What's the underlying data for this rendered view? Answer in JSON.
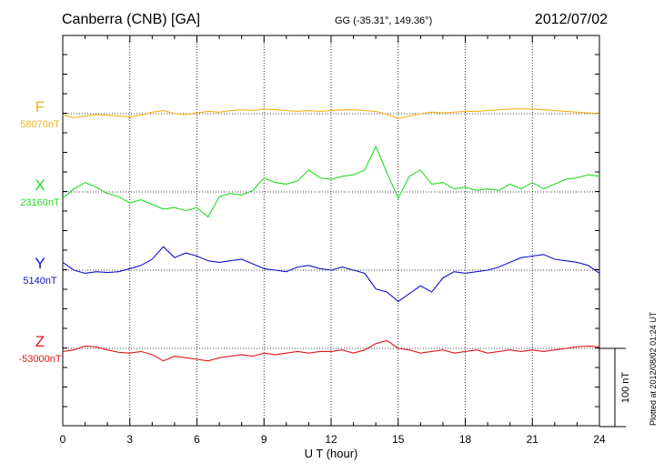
{
  "header": {
    "station": "Canberra (CNB)  [GA]",
    "coords": "GG (-35.31°, 149.36°)",
    "date": "2012/07/02"
  },
  "footer": {
    "plotted_at": "Plotted at 2012/08/02 01:24  UT"
  },
  "scale_bar": {
    "label": "100 nT",
    "value_nT": 100
  },
  "colors": {
    "F": "#f5b21a",
    "X": "#22dd22",
    "Y": "#1212cc",
    "Z": "#e01818",
    "grid": "#000000"
  },
  "chart_data": {
    "type": "line",
    "xlabel": "U T (hour)",
    "xlim": [
      0,
      24
    ],
    "x_ticks": [
      0,
      3,
      6,
      9,
      12,
      15,
      18,
      21,
      24
    ],
    "x_tick_labels": [
      "0",
      "3",
      "6",
      "9",
      "12",
      "15",
      "18",
      "21",
      "24"
    ],
    "grid": true,
    "y_unit": "nT",
    "nT_per_100": 100,
    "series": [
      {
        "name": "F",
        "baseline_label": "58070nT",
        "baseline_nT": 58070,
        "x": [
          0,
          0.5,
          1,
          1.5,
          2,
          2.5,
          3,
          3.5,
          4,
          4.5,
          5,
          5.5,
          6,
          6.5,
          7,
          7.5,
          8,
          8.5,
          9,
          9.5,
          10,
          10.5,
          11,
          11.5,
          12,
          12.5,
          13,
          13.5,
          14,
          14.5,
          15,
          15.5,
          16,
          16.5,
          17,
          17.5,
          18,
          18.5,
          19,
          19.5,
          20,
          20.5,
          21,
          21.5,
          22,
          22.5,
          23,
          23.5,
          24
        ],
        "values": [
          -2,
          -5,
          -3,
          -1,
          -2,
          -3,
          -4,
          -2,
          2,
          4,
          0,
          -1,
          1,
          3,
          2,
          4,
          5,
          4,
          6,
          5,
          4,
          3,
          4,
          3,
          4,
          5,
          5,
          4,
          3,
          -1,
          -6,
          -3,
          0,
          2,
          1,
          2,
          3,
          3,
          4,
          5,
          6,
          6,
          6,
          5,
          4,
          3,
          2,
          1,
          0
        ]
      },
      {
        "name": "X",
        "baseline_label": "23160nT",
        "baseline_nT": 23160,
        "x": [
          0,
          0.5,
          1,
          1.5,
          2,
          2.5,
          3,
          3.5,
          4,
          4.5,
          5,
          5.5,
          6,
          6.5,
          7,
          7.5,
          8,
          8.5,
          9,
          9.5,
          10,
          10.5,
          11,
          11.5,
          12,
          12.5,
          13,
          13.5,
          14,
          14.5,
          15,
          15.5,
          16,
          16.5,
          17,
          17.5,
          18,
          18.5,
          19,
          19.5,
          20,
          20.5,
          21,
          21.5,
          22,
          22.5,
          23,
          23.5,
          24
        ],
        "values": [
          -8,
          4,
          12,
          6,
          -2,
          -6,
          -14,
          -10,
          -16,
          -22,
          -20,
          -24,
          -20,
          -32,
          -6,
          -2,
          -4,
          2,
          18,
          12,
          10,
          14,
          28,
          18,
          16,
          20,
          22,
          28,
          58,
          24,
          -8,
          20,
          28,
          10,
          12,
          4,
          6,
          2,
          4,
          2,
          10,
          4,
          12,
          4,
          10,
          16,
          18,
          22,
          20
        ]
      },
      {
        "name": "Y",
        "baseline_label": "5140nT",
        "baseline_nT": 5140,
        "x": [
          0,
          0.5,
          1,
          1.5,
          2,
          2.5,
          3,
          3.5,
          4,
          4.5,
          5,
          5.5,
          6,
          6.5,
          7,
          7.5,
          8,
          8.5,
          9,
          9.5,
          10,
          10.5,
          11,
          11.5,
          12,
          12.5,
          13,
          13.5,
          14,
          14.5,
          15,
          15.5,
          16,
          16.5,
          17,
          17.5,
          18,
          18.5,
          19,
          19.5,
          20,
          20.5,
          21,
          21.5,
          22,
          22.5,
          23,
          23.5,
          24
        ],
        "values": [
          10,
          0,
          -4,
          -2,
          -3,
          -2,
          2,
          6,
          14,
          30,
          16,
          22,
          18,
          12,
          10,
          12,
          14,
          8,
          2,
          0,
          -2,
          4,
          6,
          2,
          0,
          4,
          0,
          -4,
          -24,
          -28,
          -40,
          -30,
          -20,
          -28,
          -10,
          -2,
          -4,
          -2,
          0,
          4,
          10,
          16,
          18,
          20,
          14,
          12,
          10,
          6,
          -4
        ]
      },
      {
        "name": "Z",
        "baseline_label": "-53000nT",
        "baseline_nT": -53000,
        "x": [
          0,
          0.5,
          1,
          1.5,
          2,
          2.5,
          3,
          3.5,
          4,
          4.5,
          5,
          5.5,
          6,
          6.5,
          7,
          7.5,
          8,
          8.5,
          9,
          9.5,
          10,
          10.5,
          11,
          11.5,
          12,
          12.5,
          13,
          13.5,
          14,
          14.5,
          15,
          15.5,
          16,
          16.5,
          17,
          17.5,
          18,
          18.5,
          19,
          19.5,
          20,
          20.5,
          21,
          21.5,
          22,
          22.5,
          23,
          23.5,
          24
        ],
        "values": [
          -4,
          -2,
          3,
          2,
          -2,
          -5,
          -6,
          -4,
          -8,
          -16,
          -10,
          -12,
          -14,
          -16,
          -12,
          -10,
          -8,
          -10,
          -6,
          -8,
          -6,
          -4,
          -6,
          -4,
          -4,
          -2,
          -6,
          -2,
          6,
          10,
          0,
          -2,
          -6,
          -4,
          -2,
          -6,
          -4,
          -2,
          -6,
          -4,
          -2,
          -4,
          -2,
          -4,
          -2,
          0,
          2,
          3,
          2
        ]
      }
    ]
  }
}
